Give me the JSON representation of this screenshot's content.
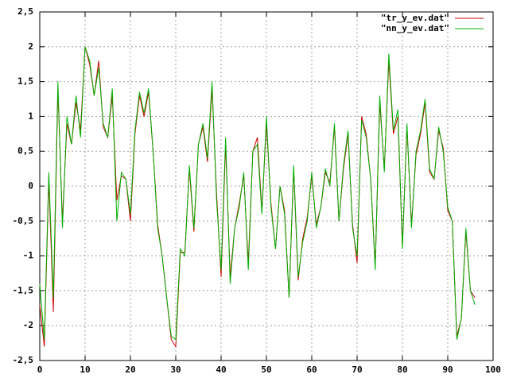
{
  "chart_data": {
    "type": "line",
    "x": [
      0,
      1,
      2,
      3,
      4,
      5,
      6,
      7,
      8,
      9,
      10,
      11,
      12,
      13,
      14,
      15,
      16,
      17,
      18,
      19,
      20,
      21,
      22,
      23,
      24,
      25,
      26,
      27,
      28,
      29,
      30,
      31,
      32,
      33,
      34,
      35,
      36,
      37,
      38,
      39,
      40,
      41,
      42,
      43,
      44,
      45,
      46,
      47,
      48,
      49,
      50,
      51,
      52,
      53,
      54,
      55,
      56,
      57,
      58,
      59,
      60,
      61,
      62,
      63,
      64,
      65,
      66,
      67,
      68,
      69,
      70,
      71,
      72,
      73,
      74,
      75,
      76,
      77,
      78,
      79,
      80,
      81,
      82,
      83,
      84,
      85,
      86,
      87,
      88,
      89,
      90,
      91,
      92,
      93,
      94,
      95,
      96
    ],
    "series": [
      {
        "name": "\"tr_y_ev.dat\"",
        "color": "#cc0000",
        "values": [
          -1.7,
          -2.3,
          0.1,
          -1.8,
          1.4,
          -0.5,
          0.9,
          0.6,
          1.2,
          0.8,
          2.0,
          1.75,
          1.3,
          1.8,
          0.85,
          0.7,
          1.3,
          -0.2,
          0.15,
          0.1,
          -0.5,
          0.75,
          1.3,
          1.0,
          1.35,
          0.5,
          -0.55,
          -1.0,
          -1.6,
          -2.2,
          -2.3,
          -0.95,
          -0.95,
          0.25,
          -0.65,
          0.6,
          0.85,
          0.35,
          1.4,
          -0.1,
          -1.3,
          0.6,
          -1.3,
          -0.6,
          -0.25,
          0.15,
          -1.1,
          0.5,
          0.7,
          -0.35,
          0.9,
          -0.25,
          -0.9,
          0.0,
          -0.35,
          -1.6,
          0.25,
          -1.35,
          -0.75,
          -0.45,
          0.15,
          -0.55,
          -0.3,
          0.2,
          0.05,
          0.85,
          -0.5,
          0.25,
          0.75,
          -0.55,
          -1.1,
          1.0,
          0.75,
          0.1,
          -1.15,
          1.2,
          0.25,
          1.8,
          0.75,
          1.0,
          -0.85,
          0.85,
          -0.55,
          0.45,
          0.75,
          1.2,
          0.2,
          0.1,
          0.8,
          0.55,
          -0.35,
          -0.5,
          -2.15,
          -1.9,
          -0.65,
          -1.5,
          -1.6
        ]
      },
      {
        "name": "\"nn_y_ev.dat\"",
        "color": "#00b000",
        "values": [
          -1.4,
          -2.2,
          0.2,
          -1.6,
          1.5,
          -0.6,
          1.0,
          0.6,
          1.3,
          0.7,
          2.0,
          1.8,
          1.3,
          1.7,
          0.9,
          0.7,
          1.4,
          -0.5,
          0.2,
          0.1,
          -0.4,
          0.8,
          1.35,
          1.05,
          1.4,
          0.5,
          -0.6,
          -1.0,
          -1.6,
          -2.15,
          -2.2,
          -0.9,
          -1.0,
          0.3,
          -0.6,
          0.6,
          0.9,
          0.4,
          1.5,
          -0.2,
          -1.2,
          0.7,
          -1.4,
          -0.6,
          -0.3,
          0.2,
          -1.2,
          0.5,
          0.6,
          -0.4,
          1.0,
          -0.3,
          -0.9,
          0.0,
          -0.4,
          -1.6,
          0.3,
          -1.3,
          -0.8,
          -0.5,
          0.2,
          -0.6,
          -0.3,
          0.25,
          0.0,
          0.9,
          -0.5,
          0.3,
          0.8,
          -0.6,
          -1.0,
          0.95,
          0.7,
          0.1,
          -1.2,
          1.3,
          0.2,
          1.9,
          0.8,
          1.1,
          -0.9,
          0.9,
          -0.6,
          0.5,
          0.8,
          1.25,
          0.25,
          0.1,
          0.85,
          0.5,
          -0.3,
          -0.5,
          -2.2,
          -1.9,
          -0.6,
          -1.5,
          -1.7
        ]
      }
    ],
    "xlim": [
      0,
      100
    ],
    "xticks": [
      0,
      10,
      20,
      30,
      40,
      50,
      60,
      70,
      80,
      90,
      100
    ],
    "ylim": [
      -2.5,
      2.5
    ],
    "yticks": [
      {
        "value": -2.5,
        "label": "-2,5"
      },
      -2,
      {
        "value": -1.5,
        "label": "-1,5"
      },
      -1,
      {
        "value": -0.5,
        "label": "-0,5"
      },
      0,
      {
        "value": 0.5,
        "label": "0,5"
      },
      1,
      {
        "value": 1.5,
        "label": "1,5"
      },
      2,
      {
        "value": 2.5,
        "label": "2,5"
      }
    ],
    "grid": true,
    "legend": "top-right"
  }
}
